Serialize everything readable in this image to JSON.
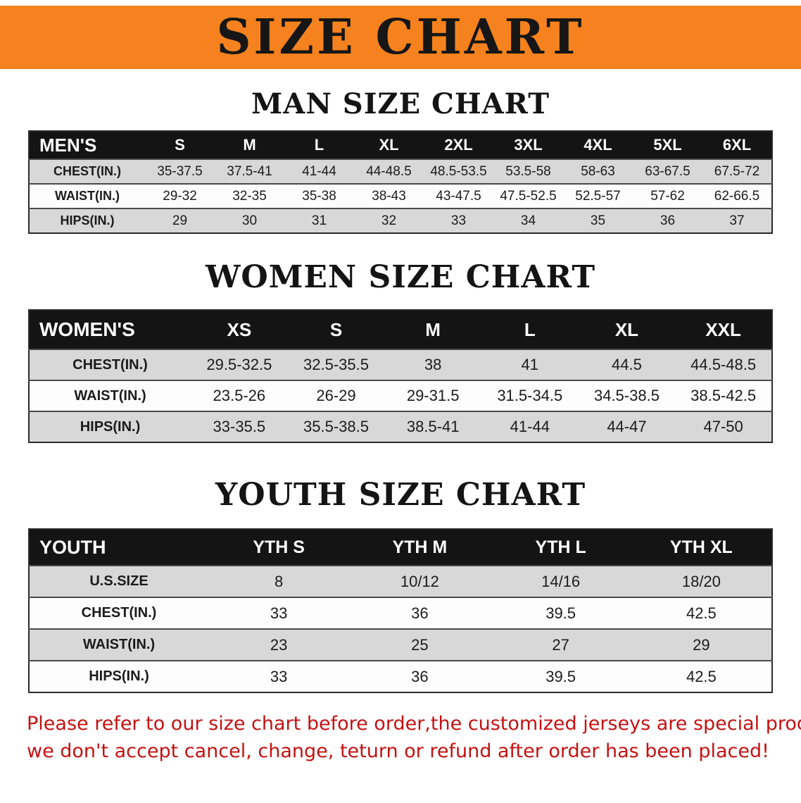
{
  "banner": {
    "title": "SIZE CHART",
    "background_color": "#f5821e"
  },
  "colors": {
    "accent_orange": "#f5821e",
    "table_header_black": "#141414",
    "row_gray": "#d8d8d8",
    "note_red": "#c41212"
  },
  "sections": [
    {
      "heading": "MAN SIZE CHART",
      "table": {
        "columns": [
          "MEN'S",
          "S",
          "M",
          "L",
          "XL",
          "2XL",
          "3XL",
          "4XL",
          "5XL",
          "6XL"
        ],
        "rows": [
          [
            "CHEST(IN.)",
            "35-37.5",
            "37.5-41",
            "41-44",
            "44-48.5",
            "48.5-53.5",
            "53.5-58",
            "58-63",
            "63-67.5",
            "67.5-72"
          ],
          [
            "WAIST(IN.)",
            "29-32",
            "32-35",
            "35-38",
            "38-43",
            "43-47.5",
            "47.5-52.5",
            "52.5-57",
            "57-62",
            "62-66.5"
          ],
          [
            "HIPS(IN.)",
            "29",
            "30",
            "31",
            "32",
            "33",
            "34",
            "35",
            "36",
            "37"
          ]
        ]
      }
    },
    {
      "heading": "WOMEN SIZE CHART",
      "table": {
        "columns": [
          "WOMEN'S",
          "XS",
          "S",
          "M",
          "L",
          "XL",
          "XXL"
        ],
        "rows": [
          [
            "CHEST(IN.)",
            "29.5-32.5",
            "32.5-35.5",
            "38",
            "41",
            "44.5",
            "44.5-48.5"
          ],
          [
            "WAIST(IN.)",
            "23.5-26",
            "26-29",
            "29-31.5",
            "31.5-34.5",
            "34.5-38.5",
            "38.5-42.5"
          ],
          [
            "HIPS(IN.)",
            "33-35.5",
            "35.5-38.5",
            "38.5-41",
            "41-44",
            "44-47",
            "47-50"
          ]
        ]
      }
    },
    {
      "heading": "YOUTH SIZE CHART",
      "table": {
        "columns": [
          "YOUTH",
          "YTH S",
          "YTH M",
          "YTH L",
          "YTH XL"
        ],
        "rows": [
          [
            "U.S.SIZE",
            "8",
            "10/12",
            "14/16",
            "18/20"
          ],
          [
            "CHEST(IN.)",
            "33",
            "36",
            "39.5",
            "42.5"
          ],
          [
            "WAIST(IN.)",
            "23",
            "25",
            "27",
            "29"
          ],
          [
            "HIPS(IN.)",
            "33",
            "36",
            "39.5",
            "42.5"
          ]
        ]
      }
    }
  ],
  "footnote": {
    "lines": [
      "Please refer to our size chart before order,the customized jerseys are special products,",
      "we don't accept cancel, change, teturn or refund after order has been placed!"
    ]
  }
}
